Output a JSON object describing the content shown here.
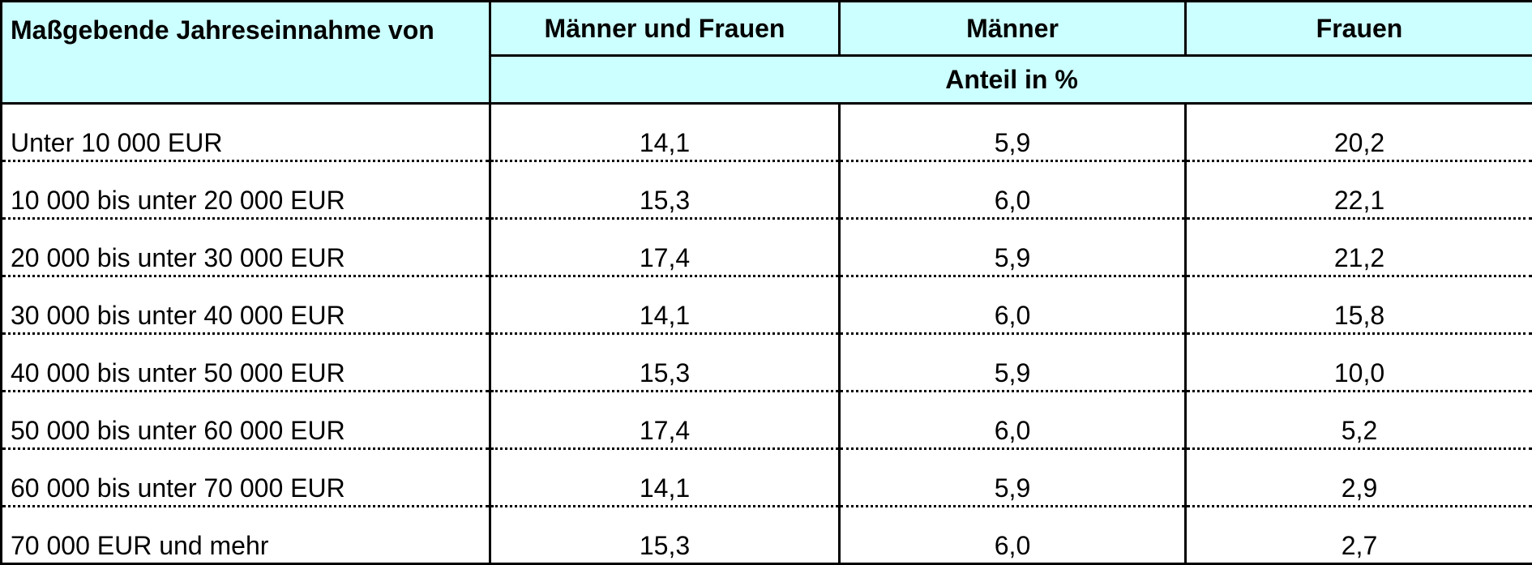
{
  "table": {
    "header": {
      "label": "Maßgebende Jahreseinnahme von",
      "columns": [
        "Männer und Frauen",
        "Männer",
        "Frauen"
      ],
      "unit": "Anteil in %"
    },
    "rows": [
      [
        "Unter 10 000 EUR",
        "14,1",
        "5,9",
        "20,2"
      ],
      [
        "10 000 bis unter 20 000 EUR",
        "15,3",
        "6,0",
        "22,1"
      ],
      [
        "20 000 bis unter 30 000 EUR",
        "17,4",
        "5,9",
        "21,2"
      ],
      [
        "30 000 bis unter 40 000 EUR",
        "14,1",
        "6,0",
        "15,8"
      ],
      [
        "40 000 bis unter 50 000 EUR",
        "15,3",
        "5,9",
        "10,0"
      ],
      [
        "50 000 bis unter 60 000 EUR",
        "17,4",
        "6,0",
        "5,2"
      ],
      [
        "60 000 bis unter 70 000 EUR",
        "14,1",
        "5,9",
        "2,9"
      ],
      [
        "70 000 EUR und mehr",
        "15,3",
        "6,0",
        "2,7"
      ]
    ]
  }
}
